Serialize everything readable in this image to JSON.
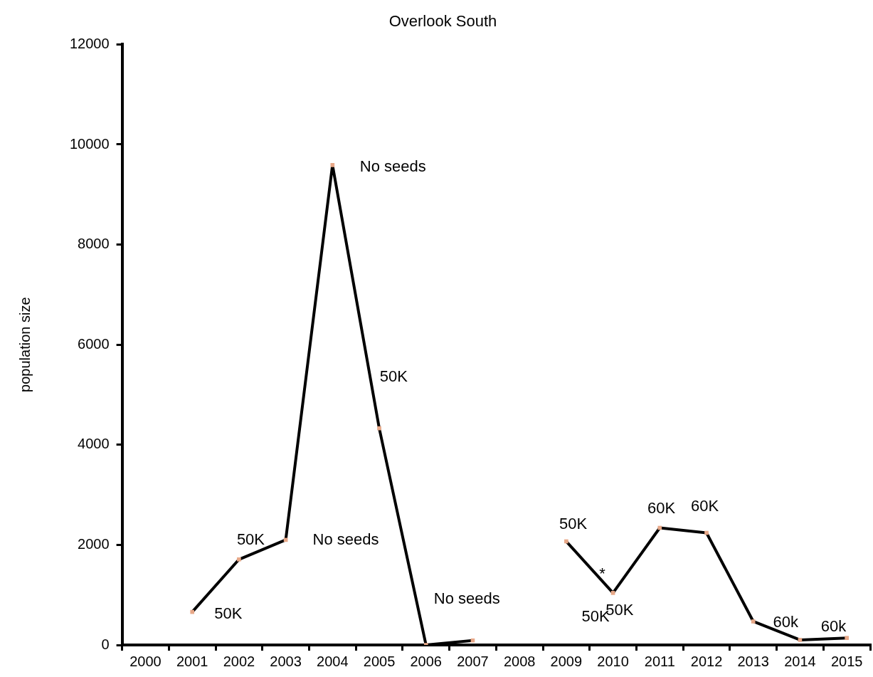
{
  "chart_data": {
    "type": "line",
    "title": "Overlook South",
    "ylabel": "population size",
    "categories": [
      "2000",
      "2001",
      "2002",
      "2003",
      "2004",
      "2005",
      "2006",
      "2007",
      "2008",
      "2009",
      "2010",
      "2011",
      "2012",
      "2013",
      "2014",
      "2015"
    ],
    "series": [
      {
        "color": "#000000",
        "values": [
          null,
          660,
          1710,
          2100,
          9590,
          4330,
          0,
          90,
          null,
          2070,
          1040,
          2340,
          2240,
          470,
          100,
          140
        ]
      }
    ],
    "ylim": [
      0,
      12000
    ],
    "yticks": [
      0,
      2000,
      4000,
      6000,
      8000,
      10000,
      12000
    ],
    "grid": false,
    "legend": false,
    "marker": "square",
    "line_style": "solid",
    "annotations": [
      "50K",
      "50K",
      "No seeds",
      "No seeds",
      "50K",
      "No seeds",
      "50K",
      "50K",
      "*",
      "50K",
      "60K",
      "60K",
      "60k",
      "60k"
    ]
  }
}
